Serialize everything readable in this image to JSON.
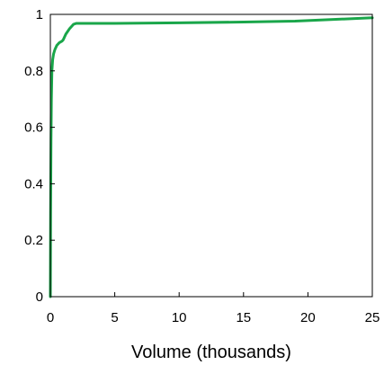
{
  "chart_data": {
    "type": "line",
    "title": "",
    "xlabel": "Volume (thousands)",
    "ylabel": "",
    "xlim": [
      0,
      25
    ],
    "ylim": [
      0,
      1
    ],
    "xticks": [
      0,
      5,
      10,
      15,
      20,
      25
    ],
    "yticks": [
      0,
      0.2,
      0.4,
      0.6,
      0.8,
      1
    ],
    "xtick_labels": [
      "0",
      "5",
      "10",
      "15",
      "20",
      "25"
    ],
    "ytick_labels": [
      "0",
      "0.2",
      "0.4",
      "0.6",
      "0.8",
      "1"
    ],
    "grid": false,
    "legend": "none",
    "series": [
      {
        "color": "#1aa64a",
        "x": [
          0,
          0.02,
          0.05,
          0.08,
          0.12,
          0.18,
          0.25,
          0.35,
          0.5,
          0.7,
          0.9,
          1.0,
          1.2,
          1.5,
          1.8,
          2.0,
          5,
          10,
          15,
          19,
          20,
          25
        ],
        "y": [
          0,
          0.3,
          0.55,
          0.7,
          0.8,
          0.84,
          0.86,
          0.875,
          0.89,
          0.9,
          0.905,
          0.91,
          0.93,
          0.95,
          0.965,
          0.968,
          0.968,
          0.97,
          0.973,
          0.976,
          0.978,
          0.988
        ]
      }
    ]
  }
}
